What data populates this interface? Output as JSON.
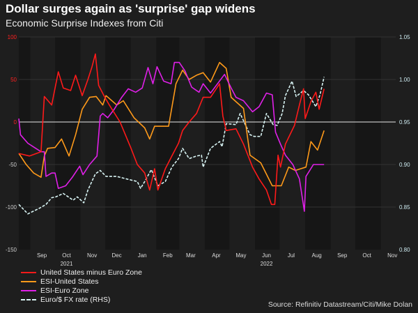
{
  "chart_data": {
    "type": "line",
    "title": "Dollar surges again as 'surprise' gap widens",
    "subtitle": "Economic Surprise Indexes from Citi",
    "source": "Source: Refinitiv Datastream/Citi/Mike Dolan",
    "xlim": [
      "2021-08-18",
      "2022-11-19"
    ],
    "x_ticks": [
      "Sep",
      "Oct",
      "Nov",
      "Dec",
      "Jan",
      "Feb",
      "Mar",
      "Apr",
      "May",
      "Jun",
      "Jul",
      "Aug",
      "Sep",
      "Oct",
      "Nov"
    ],
    "x_years": [
      "2021",
      "2022"
    ],
    "y_left": {
      "ylim": [
        -150,
        100
      ],
      "ticks": [
        "100",
        "50",
        "0",
        "-50",
        "-100",
        "-150"
      ]
    },
    "y_right": {
      "ylim": [
        0.8,
        1.05
      ],
      "ticks": [
        "1.05",
        "1.00",
        "0.95",
        "0.90",
        "0.85",
        "0.80"
      ]
    },
    "grid": true,
    "legend": "bottom-left",
    "series": [
      {
        "name": "United States minus Euro Zone",
        "color": "#ff1a1a",
        "axis": "left",
        "style": "solid",
        "x": [
          "2021-08-18",
          "2021-08-31",
          "2021-09-14",
          "2021-09-18",
          "2021-09-27",
          "2021-10-05",
          "2021-10-11",
          "2021-10-20",
          "2021-10-26",
          "2021-11-03",
          "2021-11-10",
          "2021-11-15",
          "2021-11-19",
          "2021-11-23",
          "2021-11-30",
          "2021-12-06",
          "2021-12-19",
          "2022-01-01",
          "2022-01-09",
          "2022-01-18",
          "2022-01-24",
          "2022-01-30",
          "2022-02-03",
          "2022-02-12",
          "2022-02-20",
          "2022-02-28",
          "2022-03-05",
          "2022-03-13",
          "2022-03-22",
          "2022-03-30",
          "2022-04-08",
          "2022-04-19",
          "2022-04-23",
          "2022-04-27",
          "2022-05-09",
          "2022-05-18",
          "2022-05-29",
          "2022-06-06",
          "2022-06-15",
          "2022-06-21",
          "2022-06-25",
          "2022-06-29",
          "2022-07-02",
          "2022-07-08",
          "2022-07-19",
          "2022-07-25",
          "2022-07-30",
          "2022-08-01",
          "2022-08-08",
          "2022-08-14",
          "2022-08-18",
          "2022-08-24"
        ],
        "y": [
          -37,
          -40,
          -35,
          30,
          20,
          59,
          40,
          37,
          55,
          31,
          50,
          65,
          80,
          43,
          30,
          20,
          0,
          -30,
          -50,
          -60,
          -80,
          -55,
          -80,
          -55,
          -40,
          -25,
          -10,
          0,
          10,
          29,
          29,
          45,
          7,
          -10,
          -8,
          -26,
          -53,
          -67,
          -80,
          -97,
          -97,
          -39,
          -53,
          -26,
          -4,
          20,
          39,
          4,
          24,
          35,
          15,
          39
        ]
      },
      {
        "name": "ESI-United States",
        "color": "#ff9a1a",
        "axis": "left",
        "style": "solid",
        "x": [
          "2021-08-18",
          "2021-08-27",
          "2021-09-05",
          "2021-09-14",
          "2021-09-18",
          "2021-09-22",
          "2021-10-01",
          "2021-10-09",
          "2021-10-18",
          "2021-10-26",
          "2021-11-03",
          "2021-11-12",
          "2021-11-20",
          "2021-11-28",
          "2021-12-02",
          "2021-12-15",
          "2021-12-23",
          "2022-01-05",
          "2022-01-18",
          "2022-01-24",
          "2022-01-30",
          "2022-02-08",
          "2022-02-16",
          "2022-02-25",
          "2022-03-05",
          "2022-03-13",
          "2022-03-22",
          "2022-03-30",
          "2022-04-08",
          "2022-04-19",
          "2022-04-27",
          "2022-05-03",
          "2022-05-18",
          "2022-05-26",
          "2022-06-08",
          "2022-06-22",
          "2022-07-03",
          "2022-07-12",
          "2022-07-20",
          "2022-08-02",
          "2022-08-08",
          "2022-08-16",
          "2022-08-24"
        ],
        "y": [
          -37,
          -50,
          -60,
          -65,
          -40,
          -31,
          -30,
          -20,
          -40,
          -15,
          15,
          29,
          30,
          20,
          31,
          20,
          25,
          5,
          -7,
          -20,
          -5,
          -5,
          -5,
          45,
          61,
          50,
          55,
          58,
          47,
          70,
          63,
          29,
          16,
          -39,
          -48,
          -75,
          -75,
          -53,
          -57,
          -53,
          -23,
          -33,
          -10
        ]
      },
      {
        "name": "ESI-Euro Zone",
        "color": "#e020e8",
        "axis": "left",
        "style": "solid",
        "x": [
          "2021-08-18",
          "2021-08-20",
          "2021-08-29",
          "2021-09-06",
          "2021-09-14",
          "2021-09-18",
          "2021-09-20",
          "2021-09-27",
          "2021-10-01",
          "2021-10-05",
          "2021-10-14",
          "2021-10-22",
          "2021-10-31",
          "2021-11-04",
          "2021-11-12",
          "2021-11-21",
          "2021-11-25",
          "2021-11-28",
          "2021-12-04",
          "2021-12-12",
          "2021-12-21",
          "2021-12-29",
          "2022-01-07",
          "2022-01-15",
          "2022-01-22",
          "2022-01-28",
          "2022-02-02",
          "2022-02-10",
          "2022-02-19",
          "2022-02-23",
          "2022-03-01",
          "2022-03-08",
          "2022-03-16",
          "2022-03-25",
          "2022-03-30",
          "2022-04-08",
          "2022-04-25",
          "2022-05-03",
          "2022-05-09",
          "2022-05-18",
          "2022-05-29",
          "2022-06-06",
          "2022-06-15",
          "2022-06-22",
          "2022-06-26",
          "2022-07-02",
          "2022-07-08",
          "2022-07-17",
          "2022-07-25",
          "2022-07-31",
          "2022-08-02",
          "2022-08-11",
          "2022-08-19",
          "2022-08-24"
        ],
        "y": [
          4,
          -15,
          -25,
          -30,
          -35,
          -35,
          -64,
          -60,
          -60,
          -78,
          -75,
          -65,
          -52,
          -62,
          -50,
          -40,
          7,
          10,
          5,
          15,
          29,
          39,
          35,
          40,
          64,
          45,
          65,
          48,
          45,
          70,
          70,
          60,
          41,
          35,
          45,
          34,
          56,
          40,
          29,
          25,
          12,
          18,
          34,
          32,
          -12,
          -26,
          -39,
          -50,
          -67,
          -105,
          -64,
          -50,
          -50,
          -50
        ]
      },
      {
        "name": "Euro/$ FX rate (RHS)",
        "color": "#d8f4f4",
        "axis": "right",
        "style": "dashed",
        "x": [
          "2021-08-18",
          "2021-08-29",
          "2021-09-11",
          "2021-09-20",
          "2021-09-27",
          "2021-10-02",
          "2021-10-11",
          "2021-10-23",
          "2021-10-28",
          "2021-11-05",
          "2021-11-10",
          "2021-11-19",
          "2021-11-25",
          "2021-12-02",
          "2021-12-15",
          "2021-12-27",
          "2022-01-09",
          "2022-01-13",
          "2022-01-18",
          "2022-01-26",
          "2022-02-03",
          "2022-02-12",
          "2022-02-20",
          "2022-02-28",
          "2022-03-05",
          "2022-03-13",
          "2022-03-22",
          "2022-03-28",
          "2022-03-30",
          "2022-04-08",
          "2022-04-19",
          "2022-04-22",
          "2022-04-27",
          "2022-05-09",
          "2022-05-14",
          "2022-05-26",
          "2022-05-31",
          "2022-06-08",
          "2022-06-15",
          "2022-06-23",
          "2022-06-28",
          "2022-07-04",
          "2022-07-08",
          "2022-07-16",
          "2022-07-21",
          "2022-07-30",
          "2022-08-05",
          "2022-08-14",
          "2022-08-19",
          "2022-08-24"
        ],
        "y": [
          0.853,
          0.842,
          0.848,
          0.853,
          0.861,
          0.862,
          0.866,
          0.858,
          0.862,
          0.855,
          0.87,
          0.889,
          0.893,
          0.886,
          0.886,
          0.883,
          0.88,
          0.872,
          0.88,
          0.894,
          0.875,
          0.88,
          0.897,
          0.907,
          0.919,
          0.907,
          0.91,
          0.911,
          0.897,
          0.919,
          0.927,
          0.921,
          0.948,
          0.947,
          0.96,
          0.935,
          0.933,
          0.933,
          0.96,
          0.947,
          0.946,
          0.96,
          0.981,
          0.998,
          0.98,
          0.987,
          0.982,
          0.968,
          0.982,
          1.003
        ]
      }
    ]
  }
}
